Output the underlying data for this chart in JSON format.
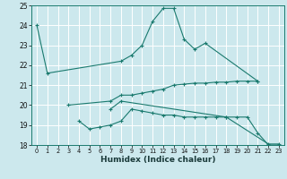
{
  "xlabel": "Humidex (Indice chaleur)",
  "bg_color": "#cce8ed",
  "line_color": "#1a7a6e",
  "grid_color": "#ffffff",
  "xlim": [
    -0.5,
    23.5
  ],
  "ylim": [
    18,
    25
  ],
  "xticks": [
    0,
    1,
    2,
    3,
    4,
    5,
    6,
    7,
    8,
    9,
    10,
    11,
    12,
    13,
    14,
    15,
    16,
    17,
    18,
    19,
    20,
    21,
    22,
    23
  ],
  "yticks": [
    18,
    19,
    20,
    21,
    22,
    23,
    24,
    25
  ],
  "series": [
    {
      "x": [
        0,
        1,
        8,
        9,
        10,
        11,
        12,
        13,
        14,
        15,
        16,
        21
      ],
      "y": [
        24.0,
        21.6,
        22.2,
        22.5,
        23.0,
        24.2,
        24.85,
        24.85,
        23.3,
        22.8,
        23.1,
        21.2
      ]
    },
    {
      "x": [
        3,
        7,
        8,
        9,
        10,
        11,
        12,
        13,
        14,
        15,
        16,
        17,
        18,
        19,
        20,
        21
      ],
      "y": [
        20.0,
        20.2,
        20.5,
        20.5,
        20.6,
        20.7,
        20.8,
        21.0,
        21.05,
        21.1,
        21.1,
        21.15,
        21.15,
        21.2,
        21.2,
        21.2
      ]
    },
    {
      "x": [
        4,
        5,
        6,
        7,
        8,
        9,
        10,
        11,
        12,
        13,
        14,
        15,
        16,
        17,
        18,
        19,
        20,
        21,
        22,
        23
      ],
      "y": [
        19.2,
        18.8,
        18.9,
        19.0,
        19.2,
        19.8,
        19.7,
        19.6,
        19.5,
        19.5,
        19.4,
        19.4,
        19.4,
        19.4,
        19.4,
        19.4,
        19.4,
        18.6,
        18.0,
        18.0
      ]
    },
    {
      "x": [
        7,
        8,
        18,
        22,
        23
      ],
      "y": [
        19.8,
        20.2,
        19.4,
        18.05,
        18.05
      ]
    }
  ]
}
